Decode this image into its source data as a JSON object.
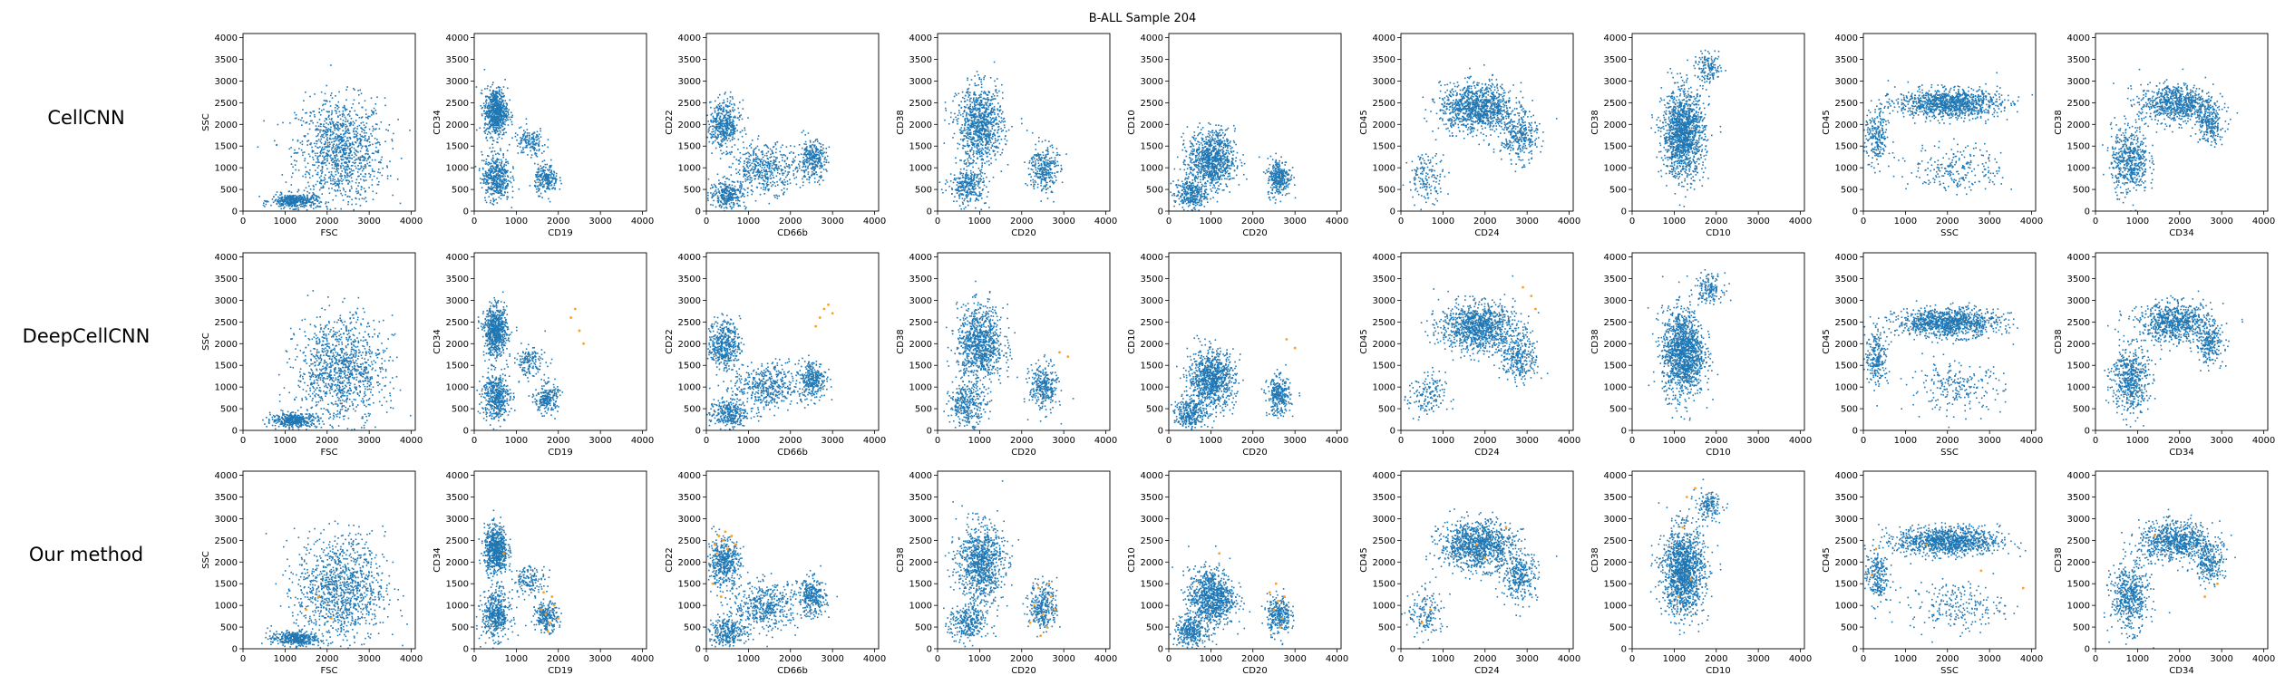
{
  "figure": {
    "title": "B-ALL Sample 204",
    "method_labels": [
      "CellCNN",
      "DeepCellCNN",
      "Our method"
    ],
    "colors": {
      "cells": "#1f77b4",
      "selected": "#ff9f1c",
      "axes": "#000000"
    }
  },
  "chart_data": {
    "type": "scatter",
    "title": "B-ALL Sample 204",
    "rows": [
      "CellCNN",
      "DeepCellCNN",
      "Our method"
    ],
    "xlim": [
      0,
      4096
    ],
    "ylim": [
      0,
      4096
    ],
    "xticks": [
      0,
      1000,
      2000,
      3000,
      4000
    ],
    "yticks": [
      0,
      500,
      1000,
      1500,
      2000,
      2500,
      3000,
      3500,
      4000
    ],
    "grid": false,
    "series": [
      {
        "name": "",
        "role": "all cells",
        "color": "#1f77b4"
      },
      {
        "name": "",
        "role": "selected cells",
        "color": "#ff9f1c"
      }
    ],
    "panels": [
      {
        "xlabel": "FSC",
        "ylabel": "SSC",
        "clusters": [
          {
            "cx": 2300,
            "cy": 1400,
            "sx": 950,
            "sy": 1100,
            "w": 0.75
          },
          {
            "cx": 1200,
            "cy": 250,
            "sx": 500,
            "sy": 150,
            "w": 0.25
          }
        ],
        "selected": [
          [],
          [],
          [
            [
              1500,
              900
            ],
            [
              1800,
              1200
            ],
            [
              2100,
              700
            ]
          ]
        ]
      },
      {
        "xlabel": "CD19",
        "ylabel": "CD34",
        "clusters": [
          {
            "cx": 500,
            "cy": 2300,
            "sx": 250,
            "sy": 500,
            "w": 0.45
          },
          {
            "cx": 500,
            "cy": 800,
            "sx": 300,
            "sy": 500,
            "w": 0.3
          },
          {
            "cx": 1700,
            "cy": 750,
            "sx": 250,
            "sy": 300,
            "w": 0.15
          },
          {
            "cx": 1300,
            "cy": 1600,
            "sx": 350,
            "sy": 300,
            "w": 0.1
          }
        ],
        "selected": [
          [],
          [
            [
              2300,
              2600
            ],
            [
              2500,
              2300
            ],
            [
              2600,
              2000
            ],
            [
              2400,
              2800
            ]
          ],
          [
            [
              1700,
              800
            ],
            [
              1800,
              600
            ],
            [
              1900,
              1000
            ],
            [
              1600,
              900
            ],
            [
              2000,
              700
            ],
            [
              1750,
              400
            ],
            [
              1850,
              1200
            ],
            [
              1650,
              1300
            ],
            [
              700,
              2200
            ]
          ]
        ]
      },
      {
        "xlabel": "CD66b",
        "ylabel": "CD22",
        "clusters": [
          {
            "cx": 400,
            "cy": 2000,
            "sx": 350,
            "sy": 500,
            "w": 0.3
          },
          {
            "cx": 1400,
            "cy": 1000,
            "sx": 700,
            "sy": 500,
            "w": 0.3
          },
          {
            "cx": 2500,
            "cy": 1200,
            "sx": 300,
            "sy": 400,
            "w": 0.2
          },
          {
            "cx": 500,
            "cy": 400,
            "sx": 400,
            "sy": 300,
            "w": 0.2
          }
        ],
        "selected": [
          [],
          [
            [
              2700,
              2600
            ],
            [
              2800,
              2800
            ],
            [
              2900,
              2900
            ],
            [
              2600,
              2400
            ],
            [
              3000,
              2700
            ]
          ],
          [
            [
              200,
              2400
            ],
            [
              300,
              2600
            ],
            [
              400,
              2500
            ],
            [
              500,
              2300
            ],
            [
              600,
              2600
            ],
            [
              250,
              2200
            ],
            [
              450,
              2700
            ],
            [
              700,
              2400
            ],
            [
              150,
              1500
            ],
            [
              350,
              1200
            ]
          ]
        ]
      },
      {
        "xlabel": "CD20",
        "ylabel": "CD38",
        "clusters": [
          {
            "cx": 1000,
            "cy": 2000,
            "sx": 500,
            "sy": 800,
            "w": 0.6
          },
          {
            "cx": 2500,
            "cy": 1000,
            "sx": 300,
            "sy": 500,
            "w": 0.2
          },
          {
            "cx": 700,
            "cy": 600,
            "sx": 400,
            "sy": 400,
            "w": 0.2
          }
        ],
        "selected": [
          [],
          [
            [
              2900,
              1800
            ],
            [
              3100,
              1700
            ]
          ],
          [
            [
              2300,
              1000
            ],
            [
              2500,
              800
            ],
            [
              2700,
              1200
            ],
            [
              2600,
              500
            ],
            [
              2400,
              1400
            ],
            [
              2800,
              900
            ],
            [
              2200,
              600
            ],
            [
              2650,
              1500
            ],
            [
              2450,
              300
            ]
          ]
        ]
      },
      {
        "xlabel": "CD20",
        "ylabel": "CD10",
        "clusters": [
          {
            "cx": 1000,
            "cy": 1200,
            "sx": 500,
            "sy": 600,
            "w": 0.6
          },
          {
            "cx": 2600,
            "cy": 800,
            "sx": 250,
            "sy": 400,
            "w": 0.2
          },
          {
            "cx": 500,
            "cy": 400,
            "sx": 350,
            "sy": 300,
            "w": 0.2
          }
        ],
        "selected": [
          [],
          [
            [
              2800,
              2100
            ],
            [
              3000,
              1900
            ]
          ],
          [
            [
              2500,
              900
            ],
            [
              2600,
              1100
            ],
            [
              2700,
              700
            ],
            [
              2400,
              1300
            ],
            [
              2650,
              500
            ],
            [
              2550,
              1500
            ],
            [
              1200,
              2200
            ],
            [
              2750,
              1200
            ]
          ]
        ]
      },
      {
        "xlabel": "CD24",
        "ylabel": "CD45",
        "clusters": [
          {
            "cx": 1800,
            "cy": 2400,
            "sx": 800,
            "sy": 500,
            "w": 0.7
          },
          {
            "cx": 2800,
            "cy": 1700,
            "sx": 400,
            "sy": 500,
            "w": 0.2
          },
          {
            "cx": 600,
            "cy": 800,
            "sx": 400,
            "sy": 500,
            "w": 0.1
          }
        ],
        "selected": [
          [],
          [
            [
              2900,
              3300
            ],
            [
              3100,
              3100
            ],
            [
              3200,
              2800
            ]
          ],
          [
            [
              1800,
              2400
            ],
            [
              2000,
              2100
            ],
            [
              500,
              600
            ],
            [
              700,
              900
            ],
            [
              2500,
              2800
            ]
          ]
        ]
      },
      {
        "xlabel": "CD10",
        "ylabel": "CD38",
        "clusters": [
          {
            "cx": 1200,
            "cy": 1800,
            "sx": 450,
            "sy": 900,
            "w": 0.9
          },
          {
            "cx": 1800,
            "cy": 3300,
            "sx": 300,
            "sy": 300,
            "w": 0.1
          }
        ],
        "selected": [
          [],
          [],
          [
            [
              1300,
              3500
            ],
            [
              1500,
              3700
            ],
            [
              1200,
              2800
            ],
            [
              1400,
              1600
            ],
            [
              1100,
              1200
            ]
          ]
        ]
      },
      {
        "xlabel": "SSC",
        "ylabel": "CD45",
        "clusters": [
          {
            "cx": 2000,
            "cy": 2500,
            "sx": 1100,
            "sy": 300,
            "w": 0.7
          },
          {
            "cx": 2200,
            "cy": 1000,
            "sx": 1000,
            "sy": 500,
            "w": 0.15
          },
          {
            "cx": 300,
            "cy": 1700,
            "sx": 250,
            "sy": 600,
            "w": 0.15
          }
        ],
        "selected": [
          [],
          [],
          [
            [
              200,
              1700
            ],
            [
              300,
              2300
            ],
            [
              2800,
              1800
            ],
            [
              1500,
              2400
            ],
            [
              3800,
              1400
            ]
          ]
        ]
      },
      {
        "xlabel": "CD34",
        "ylabel": "CD38",
        "clusters": [
          {
            "cx": 1900,
            "cy": 2500,
            "sx": 800,
            "sy": 400,
            "w": 0.5
          },
          {
            "cx": 800,
            "cy": 1200,
            "sx": 400,
            "sy": 700,
            "w": 0.35
          },
          {
            "cx": 2700,
            "cy": 2000,
            "sx": 300,
            "sy": 400,
            "w": 0.15
          }
        ],
        "selected": [
          [],
          [],
          [
            [
              2900,
              1500
            ],
            [
              2600,
              1200
            ],
            [
              1400,
              2600
            ]
          ]
        ]
      }
    ]
  }
}
